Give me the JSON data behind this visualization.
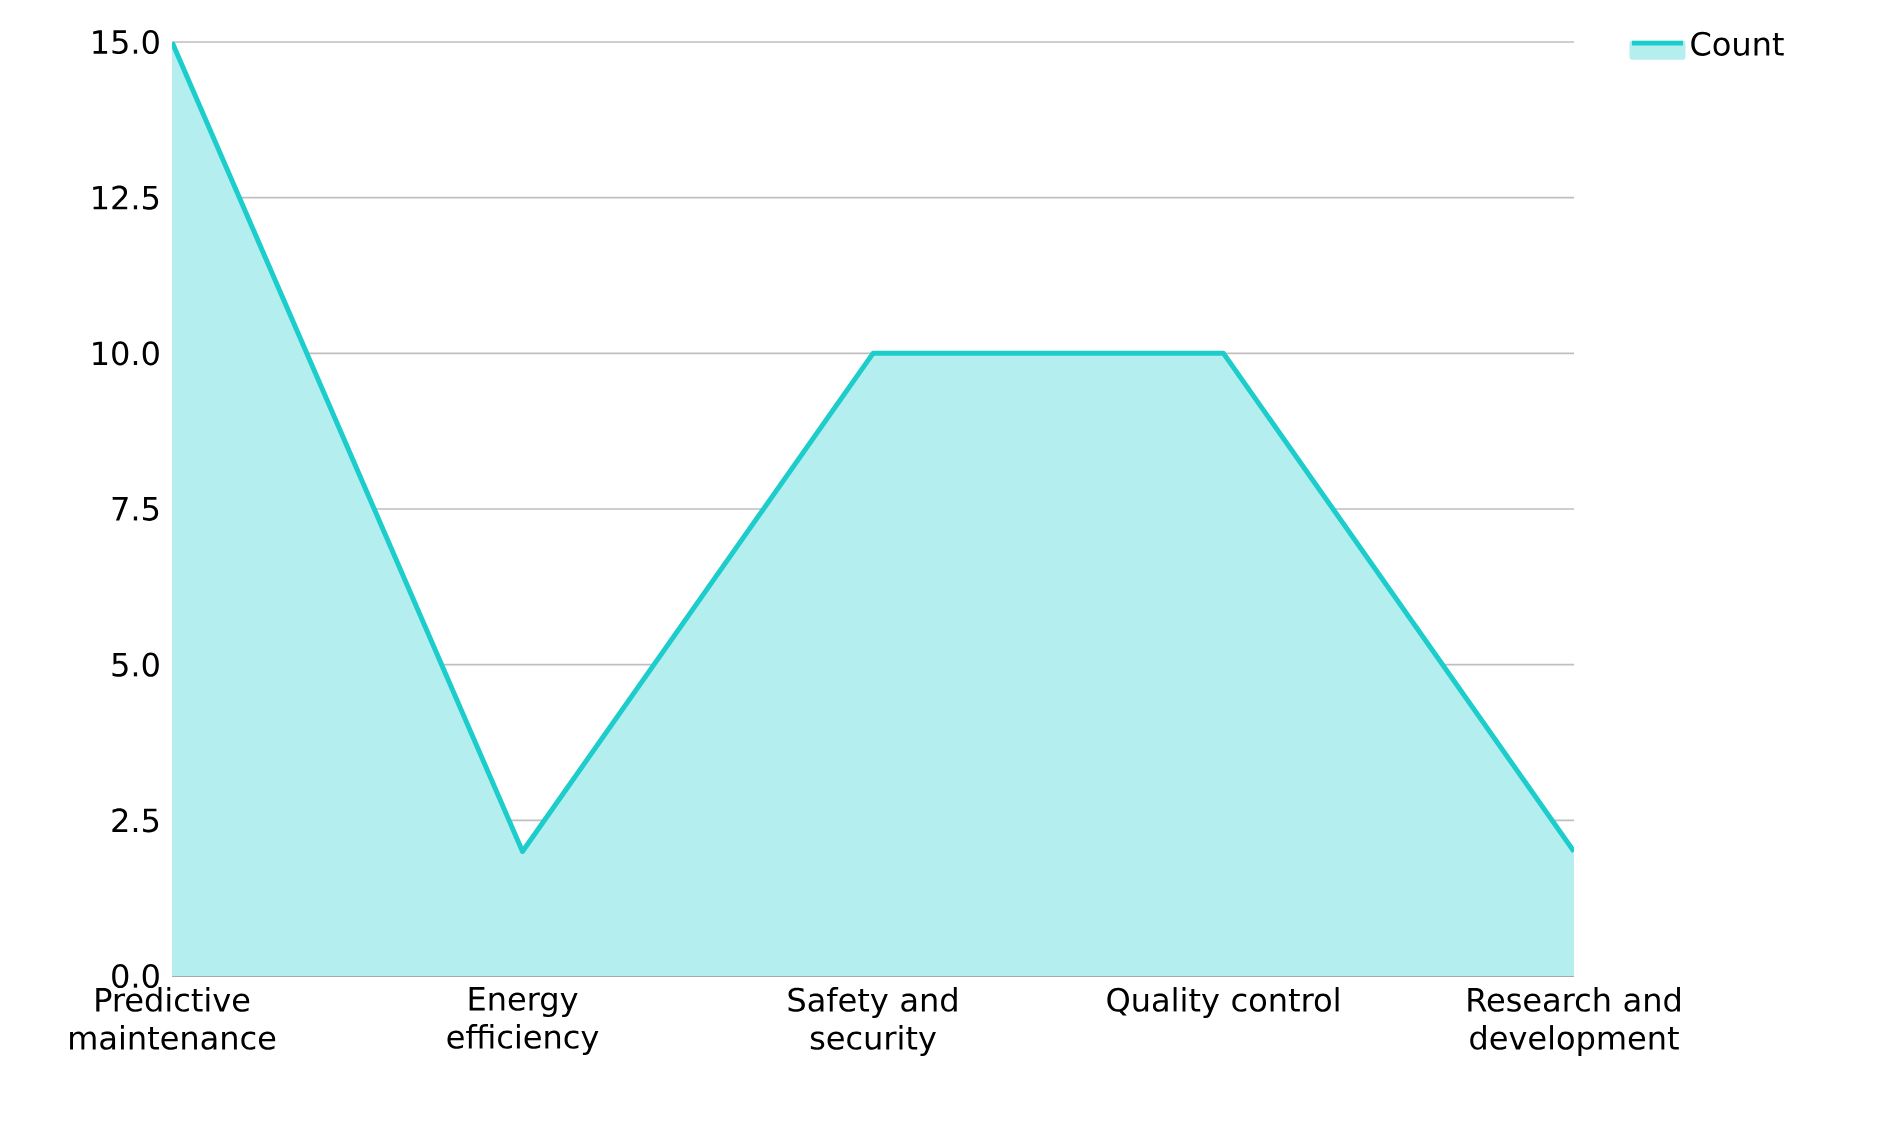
{
  "chart_data": {
    "type": "area",
    "categories": [
      "Predictive maintenance",
      "Energy efficiency",
      "Safety and security",
      "Quality control",
      "Research and development"
    ],
    "series": [
      {
        "name": "Count",
        "color": "#1ccdcb",
        "values": [
          15,
          2,
          10,
          10,
          2
        ]
      }
    ],
    "ylim": [
      0,
      15
    ],
    "yticks": [
      {
        "value": 0,
        "label": "0.0"
      },
      {
        "value": 2.5,
        "label": "2.5"
      },
      {
        "value": 5,
        "label": "5.0"
      },
      {
        "value": 7.5,
        "label": "7.5"
      },
      {
        "value": 10,
        "label": "10.0"
      },
      {
        "value": 12.5,
        "label": "12.5"
      },
      {
        "value": 15,
        "label": "15.0"
      }
    ],
    "grid": "y",
    "legend": "top right"
  }
}
